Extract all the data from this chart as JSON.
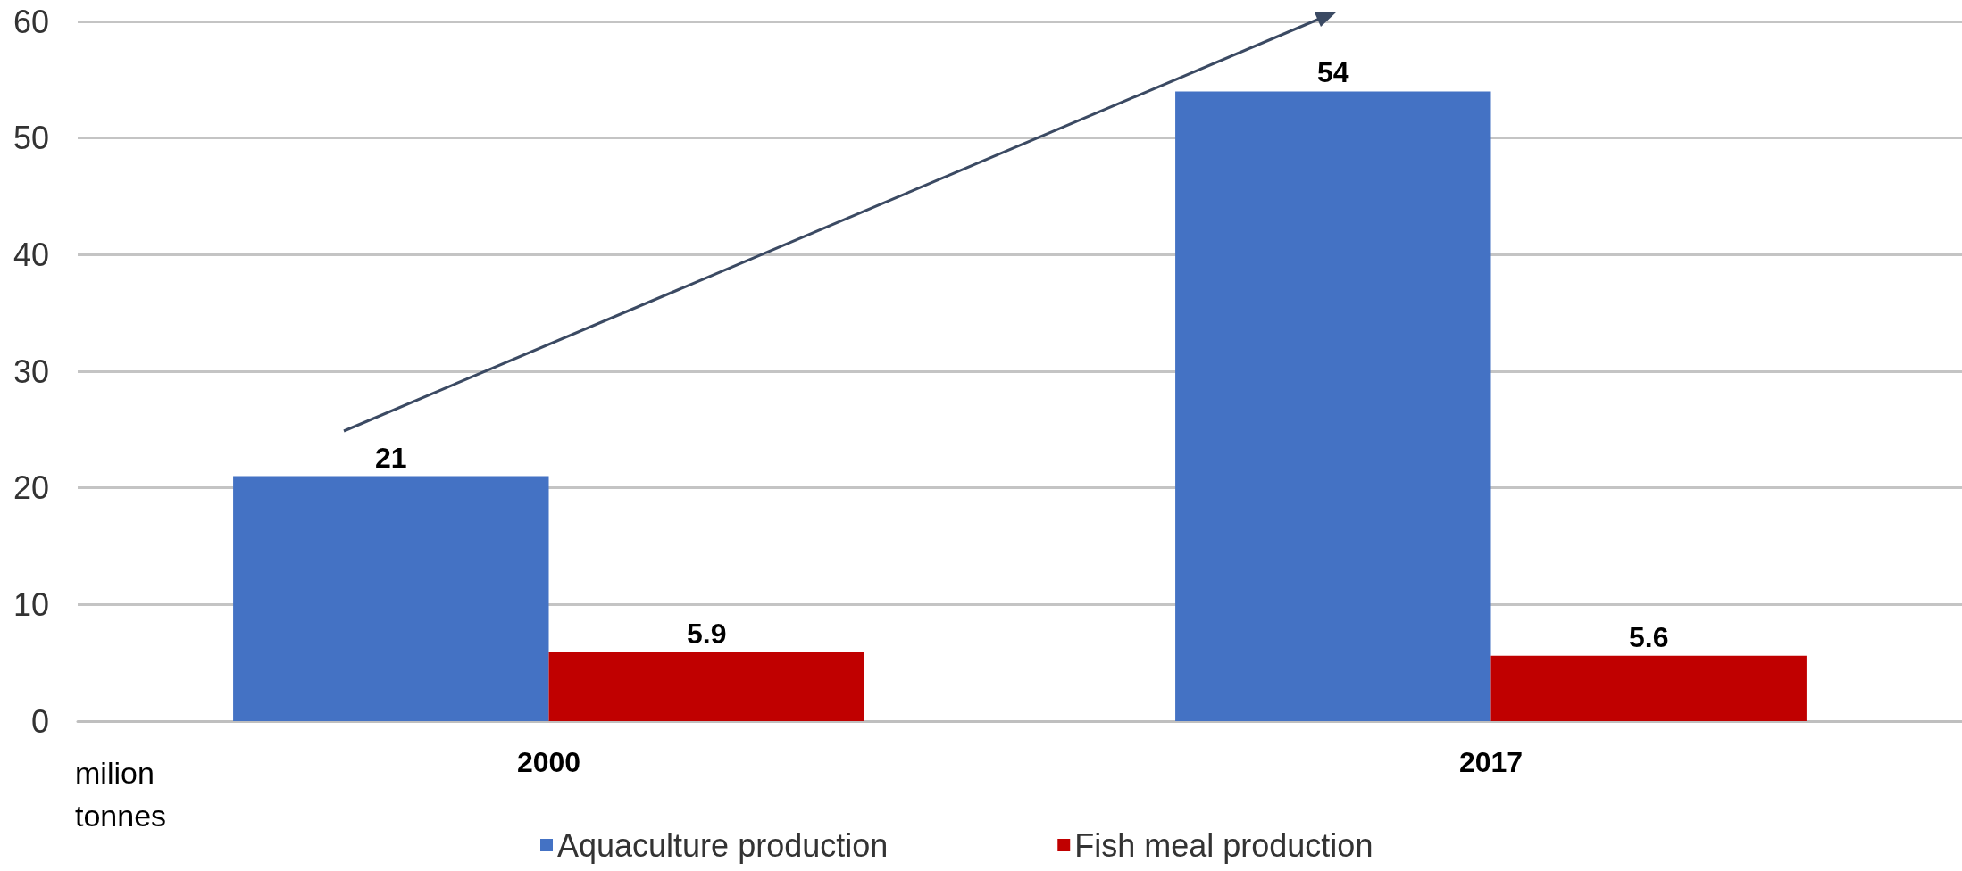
{
  "chart_data": {
    "type": "bar",
    "annotations": [
      "milion tonnes"
    ],
    "categories": [
      "2000",
      "2017"
    ],
    "series": [
      {
        "name": "Aquaculture production",
        "color": "#4472c4",
        "values": [
          21,
          54
        ]
      },
      {
        "name": "Fish meal production",
        "color": "#c00000",
        "values": [
          5.9,
          5.6
        ]
      }
    ],
    "ylim": [
      0,
      60
    ],
    "yticks": [
      0,
      10,
      20,
      30,
      40,
      50,
      60
    ],
    "grid": "y",
    "legend": "bottom",
    "data_labels": true
  }
}
